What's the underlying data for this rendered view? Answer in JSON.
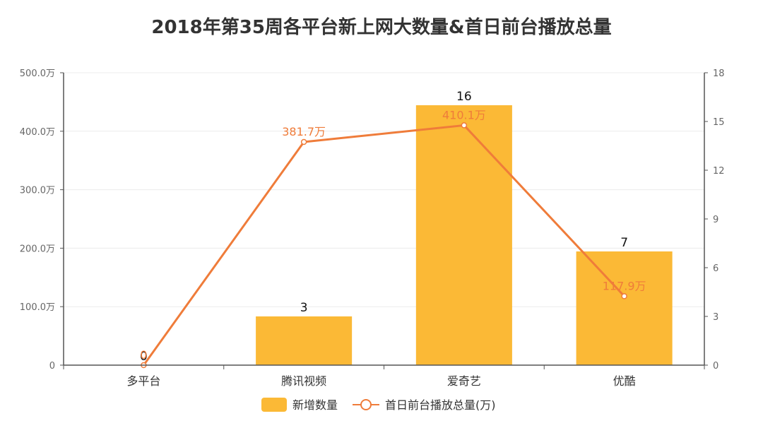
{
  "chart_data": {
    "type": "bar",
    "title": "2018年第35周各平台新上网大数量&首日前台播放总量",
    "categories": [
      "多平台",
      "腾讯视频",
      "爱奇艺",
      "优酷"
    ],
    "series": [
      {
        "name": "新增数量",
        "type": "bar",
        "axis": "right",
        "values": [
          0,
          3,
          16,
          7
        ],
        "labels": [
          "0",
          "3",
          "16",
          "7"
        ]
      },
      {
        "name": "首日前台播放总量(万)",
        "type": "line",
        "axis": "left",
        "values": [
          0,
          381.7,
          410.1,
          117.9
        ],
        "labels": [
          "0",
          "381.7万",
          "410.1万",
          "117.9万"
        ]
      }
    ],
    "y_left": {
      "min": 0,
      "max": 500,
      "ticks": [
        0,
        100,
        200,
        300,
        400,
        500
      ],
      "tick_labels": [
        "0",
        "100.0万",
        "200.0万",
        "300.0万",
        "400.0万",
        "500.0万"
      ]
    },
    "y_right": {
      "min": 0,
      "max": 18,
      "ticks": [
        0,
        3,
        6,
        9,
        12,
        15,
        18
      ],
      "tick_labels": [
        "0",
        "3",
        "6",
        "9",
        "12",
        "15",
        "18"
      ]
    },
    "grid": true,
    "legend_position": "bottom",
    "colors": {
      "bar": "#fbb936",
      "line": "#ef7c3a"
    }
  }
}
